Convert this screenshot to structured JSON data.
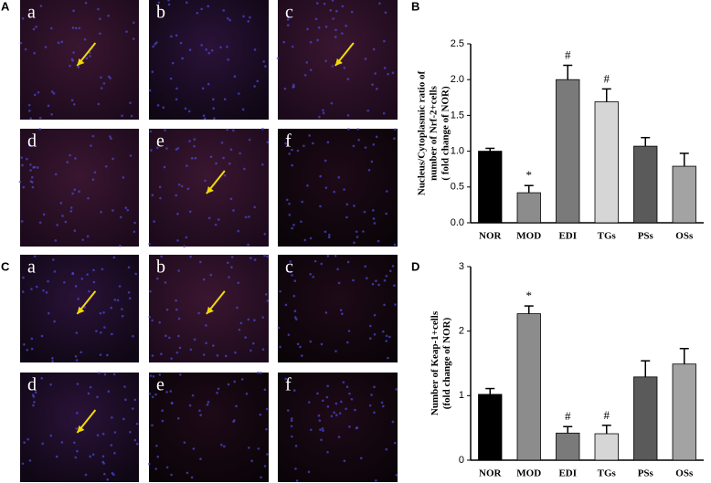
{
  "panel_labels": [
    "A",
    "B",
    "C",
    "D"
  ],
  "image_labels": [
    "a",
    "b",
    "c",
    "d",
    "e",
    "f"
  ],
  "chart_data": [
    {
      "type": "bar",
      "ylabel": [
        "Nucleus/Cytoplasmic ratio of",
        "number of Nrf-2+cells",
        "( fold change of NOR)"
      ],
      "categories": [
        "NOR",
        "MOD",
        "EDI",
        "TGs",
        "PSs",
        "OSs"
      ],
      "values": [
        1.0,
        0.42,
        2.0,
        1.69,
        1.07,
        0.79
      ],
      "errors": [
        0.04,
        0.1,
        0.2,
        0.18,
        0.12,
        0.18
      ],
      "annotations": [
        null,
        "*",
        "#",
        "#",
        null,
        null
      ],
      "colors": [
        "#000000",
        "#8c8c8c",
        "#7a7a7a",
        "#d6d6d6",
        "#5a5a5a",
        "#a3a3a3"
      ],
      "ylim": [
        0,
        2.5
      ],
      "yticks": [
        {
          "value": 0,
          "label": "0.0"
        },
        0.5,
        {
          "value": 1,
          "label": "1.0"
        },
        1.5,
        {
          "value": 2,
          "label": "2.0"
        },
        2.5
      ]
    },
    {
      "type": "bar",
      "ylabel": [
        "Number of Keap-1+cells",
        "(fold change of NOR)"
      ],
      "categories": [
        "NOR",
        "MOD",
        "EDI",
        "TGs",
        "PSs",
        "OSs"
      ],
      "values": [
        1.02,
        2.27,
        0.42,
        0.41,
        1.29,
        1.49
      ],
      "errors": [
        0.09,
        0.12,
        0.1,
        0.13,
        0.25,
        0.24
      ],
      "annotations": [
        null,
        "*",
        "#",
        "#",
        null,
        null
      ],
      "colors": [
        "#000000",
        "#8c8c8c",
        "#7a7a7a",
        "#d6d6d6",
        "#5a5a5a",
        "#a3a3a3"
      ],
      "ylim": [
        0,
        3
      ],
      "yticks": [
        0,
        1,
        2,
        3
      ]
    }
  ]
}
